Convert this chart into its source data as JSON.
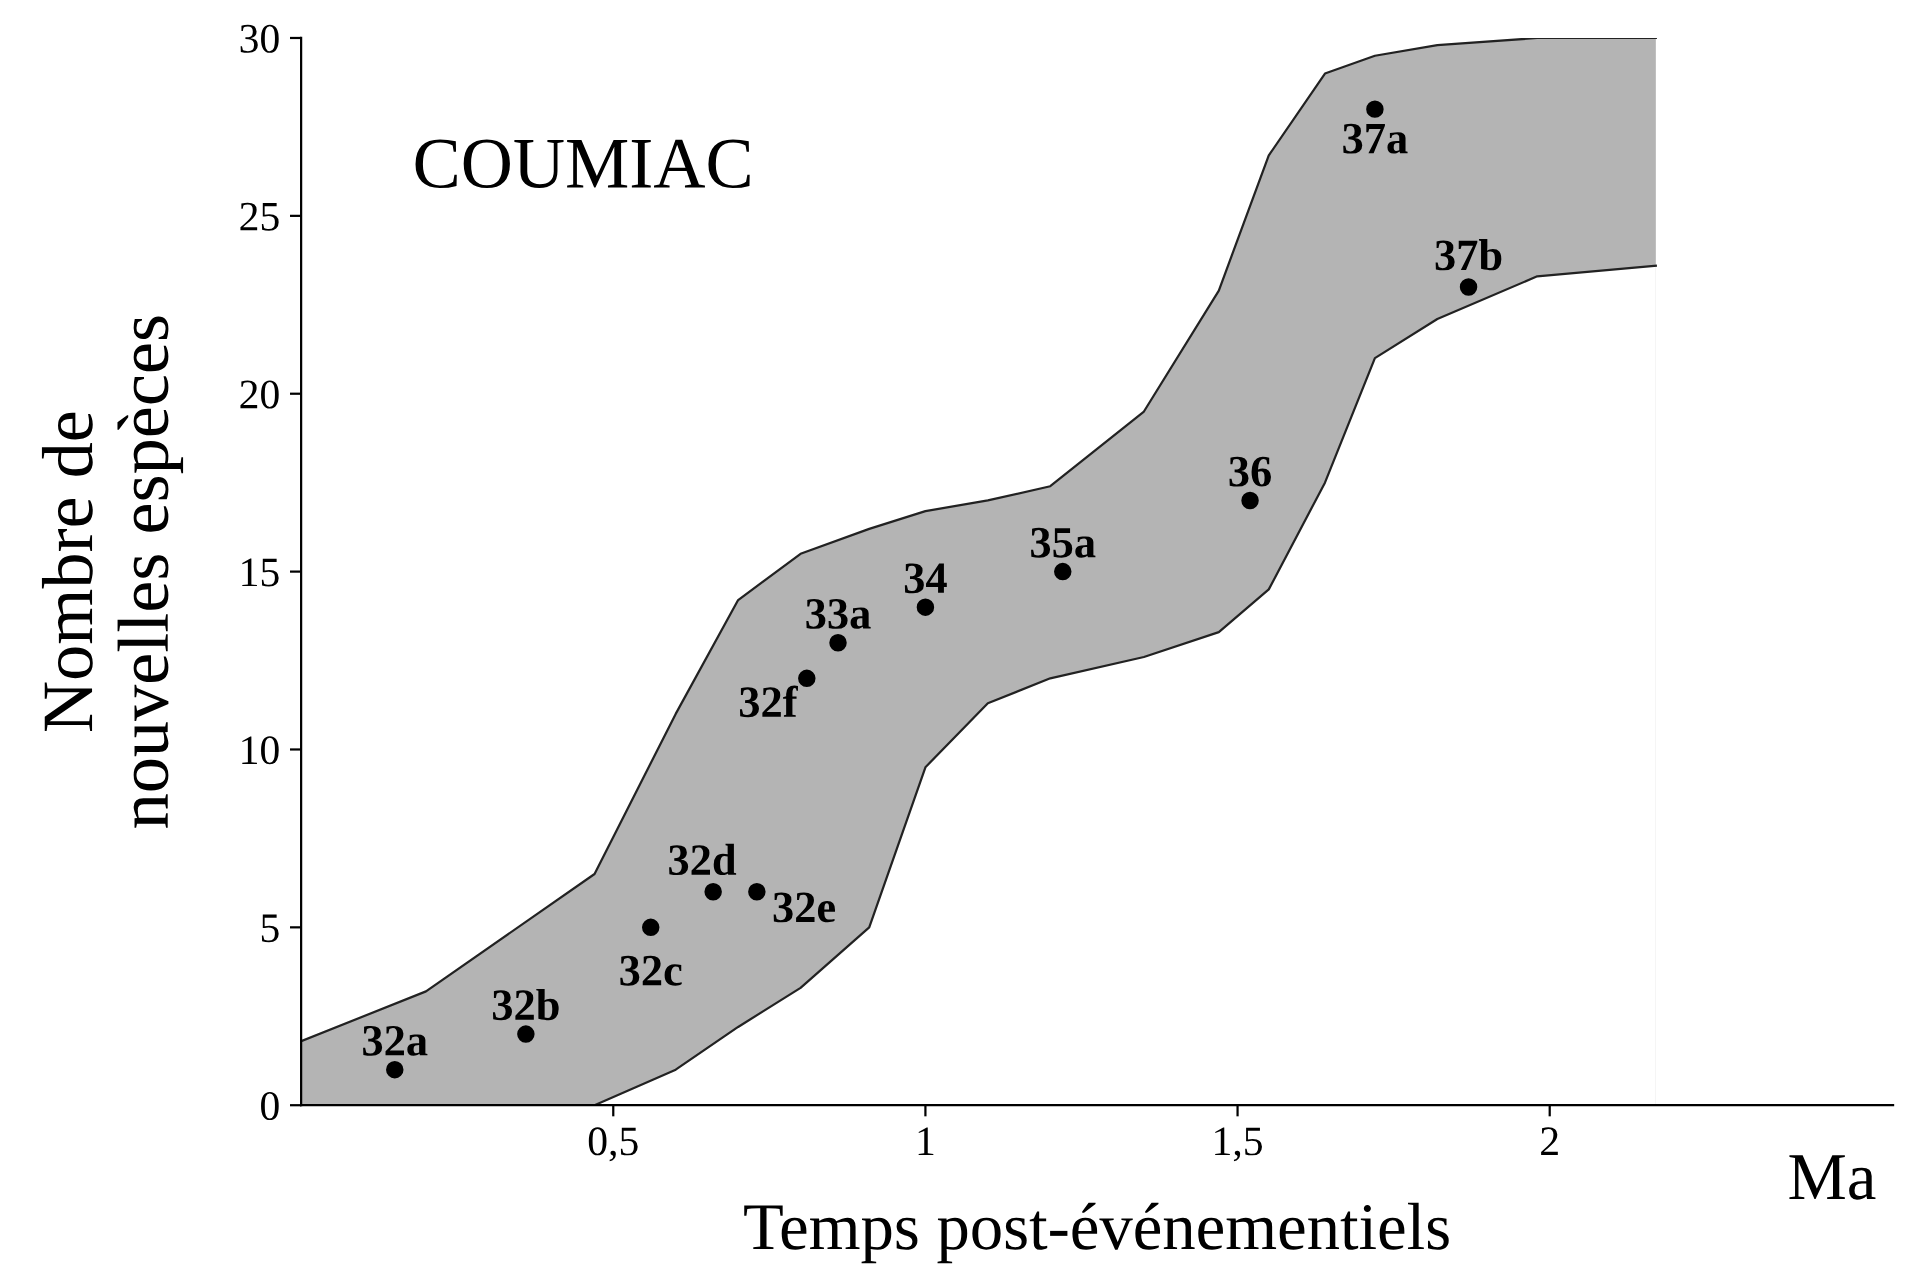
{
  "chart_data": {
    "type": "scatter",
    "title": "COUMIAC",
    "xlabel": "Temps post-événementiels",
    "ylabel": "Nombre de\nnouvelles espèces",
    "xlim": [
      0,
      2.55
    ],
    "ylim": [
      0,
      30
    ],
    "xticks": [
      {
        "value": 0.5,
        "label": "0,5"
      },
      1,
      {
        "value": 1.5,
        "label": "1,5"
      },
      2
    ],
    "yticks": [
      0,
      5,
      10,
      15,
      20,
      25,
      30
    ],
    "grid": false,
    "legend": false,
    "marker": "circle",
    "series": [
      {
        "type": "area",
        "color": "#b4b4b4",
        "marker": "none",
        "x": [
          0,
          0.2,
          0.47,
          0.6,
          0.7,
          0.8,
          0.91,
          1.0,
          1.1,
          1.2,
          1.35,
          1.47,
          1.55,
          1.64,
          1.72,
          1.82,
          1.98,
          2.17
        ],
        "values": [
          1.8,
          3.2,
          6.5,
          11,
          14.2,
          15.5,
          16.2,
          16.7,
          17,
          17.4,
          19.5,
          22.9,
          26.7,
          29,
          29.5,
          29.8,
          30,
          30
        ]
      },
      {
        "type": "area",
        "color": "#ffffff",
        "marker": "none",
        "x": [
          0.47,
          0.6,
          0.7,
          0.8,
          0.91,
          1.0,
          1.1,
          1.2,
          1.35,
          1.47,
          1.55,
          1.64,
          1.72,
          1.82,
          1.98,
          2.17
        ],
        "values": [
          0,
          1,
          2.2,
          3.3,
          5,
          9.5,
          11.3,
          12,
          12.6,
          13.3,
          14.5,
          17.5,
          21,
          22.1,
          23.3,
          23.6
        ]
      },
      {
        "color": "#000000",
        "x": [
          0.15,
          0.36,
          0.56,
          0.66,
          0.73,
          0.81,
          0.86,
          1.0,
          1.22,
          1.52,
          1.72,
          1.87
        ],
        "values": [
          1,
          2,
          5,
          6,
          6,
          12,
          13,
          14,
          15,
          17,
          28,
          23
        ]
      }
    ],
    "annotations": [
      {
        "text": "32a",
        "x": 0.15,
        "y": 1
      },
      {
        "text": "32b",
        "x": 0.36,
        "y": 2
      },
      {
        "text": "32c",
        "x": 0.56,
        "y": 5
      },
      {
        "text": "32d",
        "x": 0.66,
        "y": 6
      },
      {
        "text": "32e",
        "x": 0.73,
        "y": 6
      },
      {
        "text": "32f",
        "x": 0.81,
        "y": 12
      },
      {
        "text": "33a",
        "x": 0.86,
        "y": 13
      },
      {
        "text": "34",
        "x": 1.0,
        "y": 14
      },
      {
        "text": "35a",
        "x": 1.22,
        "y": 15
      },
      {
        "text": "36",
        "x": 1.52,
        "y": 17
      },
      {
        "text": "37a",
        "x": 1.72,
        "y": 28
      },
      {
        "text": "37b",
        "x": 1.87,
        "y": 23
      },
      "Ma"
    ]
  }
}
